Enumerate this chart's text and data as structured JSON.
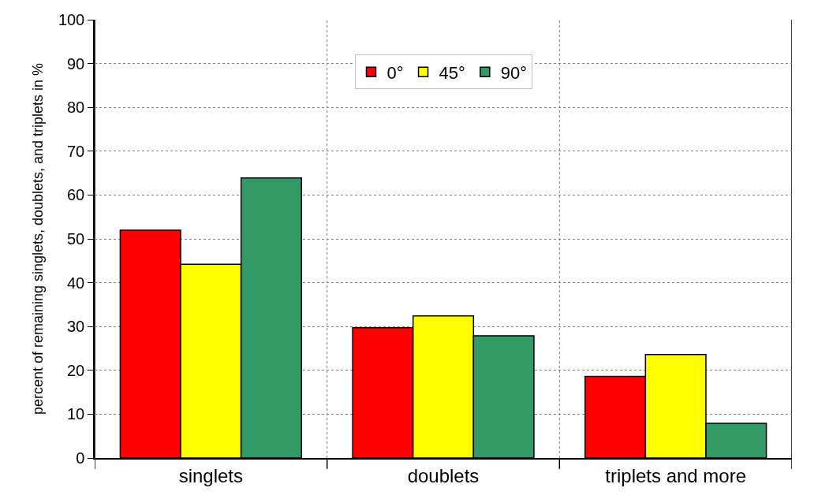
{
  "chart_data": {
    "type": "bar",
    "ylabel": "percent of remaining singlets, doublets, and triplets in %",
    "categories": [
      "singlets",
      "doublets",
      "triplets and more"
    ],
    "series": [
      {
        "name": "0°",
        "color": "#ff0000",
        "values": [
          52.0,
          29.7,
          18.6
        ]
      },
      {
        "name": "45°",
        "color": "#ffff00",
        "values": [
          44.2,
          32.4,
          23.6
        ]
      },
      {
        "name": "90°",
        "color": "#339966",
        "values": [
          63.9,
          27.9,
          7.9
        ]
      }
    ],
    "ylim": [
      0,
      100
    ],
    "yticks": [
      0,
      10,
      20,
      30,
      40,
      50,
      60,
      70,
      80,
      90,
      100
    ],
    "grid": true,
    "legend": "top"
  }
}
